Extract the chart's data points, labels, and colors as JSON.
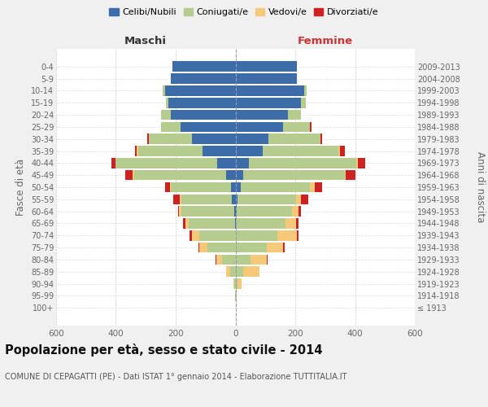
{
  "age_groups": [
    "100+",
    "95-99",
    "90-94",
    "85-89",
    "80-84",
    "75-79",
    "70-74",
    "65-69",
    "60-64",
    "55-59",
    "50-54",
    "45-49",
    "40-44",
    "35-39",
    "30-34",
    "25-29",
    "20-24",
    "15-19",
    "10-14",
    "5-9",
    "0-4"
  ],
  "birth_years": [
    "≤ 1913",
    "1914-1918",
    "1919-1923",
    "1924-1928",
    "1929-1933",
    "1934-1938",
    "1939-1943",
    "1944-1948",
    "1949-1953",
    "1954-1958",
    "1959-1963",
    "1964-1968",
    "1969-1973",
    "1974-1978",
    "1979-1983",
    "1984-1988",
    "1989-1993",
    "1994-1998",
    "1999-2003",
    "2004-2008",
    "2009-2013"
  ],
  "males": {
    "celibi": [
      0,
      0,
      0,
      0,
      0,
      0,
      0,
      2,
      5,
      12,
      15,
      30,
      60,
      110,
      145,
      185,
      215,
      225,
      235,
      215,
      210
    ],
    "coniugati": [
      0,
      2,
      5,
      18,
      45,
      95,
      120,
      155,
      175,
      170,
      200,
      310,
      340,
      215,
      145,
      65,
      35,
      8,
      8,
      0,
      0
    ],
    "vedovi": [
      0,
      0,
      2,
      12,
      20,
      25,
      25,
      10,
      8,
      5,
      5,
      5,
      0,
      5,
      0,
      0,
      0,
      0,
      0,
      0,
      0
    ],
    "divorziati": [
      0,
      0,
      0,
      0,
      2,
      5,
      8,
      8,
      5,
      22,
      15,
      25,
      15,
      5,
      5,
      0,
      0,
      0,
      0,
      0,
      0
    ]
  },
  "females": {
    "nubili": [
      0,
      0,
      0,
      0,
      0,
      0,
      0,
      2,
      5,
      8,
      18,
      25,
      45,
      90,
      110,
      160,
      175,
      220,
      230,
      205,
      205
    ],
    "coniugate": [
      0,
      2,
      8,
      25,
      50,
      105,
      140,
      165,
      185,
      195,
      230,
      340,
      360,
      255,
      175,
      90,
      45,
      15,
      8,
      0,
      0
    ],
    "vedove": [
      0,
      2,
      12,
      55,
      55,
      55,
      65,
      35,
      22,
      15,
      18,
      5,
      5,
      5,
      0,
      0,
      0,
      0,
      0,
      0,
      0
    ],
    "divorziate": [
      0,
      0,
      0,
      0,
      2,
      5,
      5,
      8,
      8,
      25,
      25,
      30,
      25,
      15,
      5,
      5,
      0,
      0,
      0,
      0,
      0
    ]
  },
  "colors": {
    "celibi": "#3d6da8",
    "coniugati": "#b5cc8e",
    "vedovi": "#f5c87a",
    "divorziati": "#cc2222"
  },
  "xlim": 600,
  "title": "Popolazione per età, sesso e stato civile - 2014",
  "subtitle": "COMUNE DI CEPAGATTI (PE) - Dati ISTAT 1° gennaio 2014 - Elaborazione TUTTITALIA.IT",
  "ylabel_left": "Fasce di età",
  "ylabel_right": "Anni di nascita",
  "xlabel_left": "Maschi",
  "xlabel_right": "Femmine",
  "legend_labels": [
    "Celibi/Nubili",
    "Coniugati/e",
    "Vedovi/e",
    "Divorziati/e"
  ],
  "bg_color": "#f0f0f0",
  "plot_bg_color": "#ffffff"
}
